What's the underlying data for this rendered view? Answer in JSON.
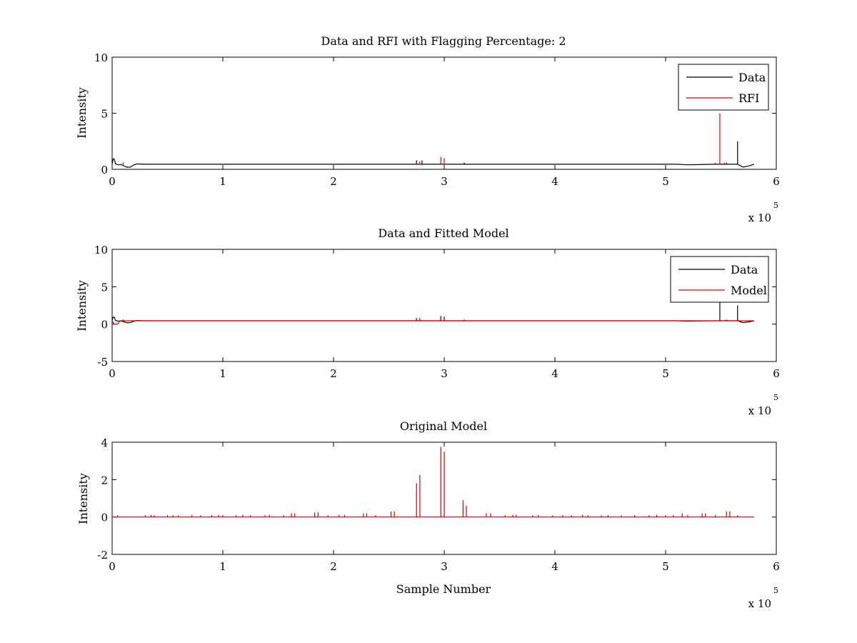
{
  "figure": {
    "background": "#ffffff",
    "colors": {
      "data": "#000000",
      "rfi": "#dd0000",
      "model": "#dd0000",
      "axes": "#000000"
    }
  },
  "chart_data": [
    {
      "type": "line",
      "title": "Data and RFI with Flagging Percentage: 2",
      "xlabel": "",
      "ylabel": "Intensity",
      "xlim": [
        0,
        6
      ],
      "ylim": [
        0,
        10
      ],
      "xticks": [
        "0",
        "1",
        "2",
        "3",
        "4",
        "5",
        "6"
      ],
      "yticks": [
        "0",
        "5",
        "10"
      ],
      "x_multiplier": {
        "prefix": "x 10",
        "exponent": "5"
      },
      "legend": {
        "position": "top-right",
        "entries": [
          {
            "name": "Data",
            "color": "#000000"
          },
          {
            "name": "RFI",
            "color": "#dd0000"
          }
        ]
      },
      "series": [
        {
          "name": "Data",
          "color": "#000000",
          "baseline": 0.45,
          "points": [
            [
              0,
              0.5
            ],
            [
              0.01,
              0.95
            ],
            [
              0.02,
              0.9
            ],
            [
              0.03,
              0.5
            ],
            [
              0.05,
              0.4
            ],
            [
              0.08,
              0.42
            ],
            [
              0.1,
              0.35
            ],
            [
              0.13,
              0.2
            ],
            [
              0.16,
              0.18
            ],
            [
              0.19,
              0.35
            ],
            [
              0.22,
              0.48
            ],
            [
              0.3,
              0.45
            ],
            [
              5.1,
              0.45
            ],
            [
              5.2,
              0.4
            ],
            [
              5.3,
              0.42
            ],
            [
              5.45,
              0.45
            ],
            [
              5.65,
              0.45
            ],
            [
              5.7,
              0.2
            ],
            [
              5.75,
              0.3
            ],
            [
              5.8,
              0.45
            ]
          ],
          "spikes": [
            [
              5.65,
              2.5
            ],
            [
              2.75,
              0.8
            ],
            [
              2.8,
              0.8
            ],
            [
              5.5,
              0.5
            ],
            [
              3.18,
              0.6
            ],
            [
              0.1,
              0.6
            ],
            [
              5.55,
              0.6
            ]
          ]
        },
        {
          "name": "RFI",
          "color": "#dd0000",
          "baseline": 0.45,
          "points": [],
          "spikes": [
            [
              5.49,
              5.0
            ],
            [
              2.97,
              1.1
            ],
            [
              3.0,
              1.0
            ],
            [
              1.4,
              0.5
            ],
            [
              2.75,
              0.7
            ],
            [
              2.78,
              0.7
            ],
            [
              3.2,
              0.5
            ],
            [
              5.45,
              0.6
            ],
            [
              5.53,
              0.6
            ],
            [
              5.6,
              0.5
            ]
          ]
        }
      ]
    },
    {
      "type": "line",
      "title": "Data and Fitted Model",
      "xlabel": "",
      "ylabel": "Intensity",
      "xlim": [
        0,
        6
      ],
      "ylim": [
        -5,
        10
      ],
      "xticks": [
        "0",
        "1",
        "2",
        "3",
        "4",
        "5",
        "6"
      ],
      "yticks": [
        "-5",
        "0",
        "5",
        "10"
      ],
      "x_multiplier": {
        "prefix": "x 10",
        "exponent": "5"
      },
      "legend": {
        "position": "top-right",
        "entries": [
          {
            "name": "Data",
            "color": "#000000"
          },
          {
            "name": "Model",
            "color": "#dd0000"
          }
        ]
      },
      "series": [
        {
          "name": "Data",
          "color": "#000000",
          "baseline": 0.45,
          "points": [
            [
              0,
              0.5
            ],
            [
              0.01,
              0.95
            ],
            [
              0.02,
              0.9
            ],
            [
              0.03,
              0.5
            ],
            [
              0.05,
              0.4
            ],
            [
              0.08,
              0.42
            ],
            [
              0.1,
              0.35
            ],
            [
              0.13,
              0.2
            ],
            [
              0.16,
              0.18
            ],
            [
              0.19,
              0.35
            ],
            [
              0.22,
              0.48
            ],
            [
              0.3,
              0.45
            ],
            [
              5.1,
              0.45
            ],
            [
              5.2,
              0.4
            ],
            [
              5.3,
              0.42
            ],
            [
              5.45,
              0.45
            ],
            [
              5.65,
              0.45
            ],
            [
              5.7,
              0.2
            ],
            [
              5.75,
              0.3
            ],
            [
              5.8,
              0.45
            ]
          ],
          "spikes": [
            [
              5.49,
              3.0
            ],
            [
              5.65,
              2.5
            ],
            [
              2.75,
              0.8
            ],
            [
              2.78,
              0.8
            ],
            [
              2.97,
              1.0
            ],
            [
              3.0,
              1.0
            ],
            [
              3.18,
              0.6
            ],
            [
              0.1,
              0.6
            ],
            [
              5.55,
              0.6
            ]
          ]
        },
        {
          "name": "Model",
          "color": "#dd0000",
          "baseline": 0.45,
          "points": [
            [
              0,
              0.45
            ],
            [
              0.02,
              0.0
            ],
            [
              0.05,
              0.0
            ],
            [
              0.07,
              0.45
            ],
            [
              5.8,
              0.45
            ]
          ],
          "spikes": [
            [
              2.75,
              0.8
            ],
            [
              2.78,
              0.8
            ],
            [
              2.97,
              1.1
            ],
            [
              3.0,
              1.0
            ],
            [
              3.18,
              0.6
            ],
            [
              0.1,
              0.6
            ]
          ]
        }
      ]
    },
    {
      "type": "line",
      "title": "Original Model",
      "xlabel": "Sample Number",
      "ylabel": "Intensity",
      "xlim": [
        0,
        6
      ],
      "ylim": [
        -2,
        4
      ],
      "xticks": [
        "0",
        "1",
        "2",
        "3",
        "4",
        "5",
        "6"
      ],
      "yticks": [
        "-2",
        "0",
        "2",
        "4"
      ],
      "x_multiplier": {
        "prefix": "x 10",
        "exponent": "5"
      },
      "legend": null,
      "series": [
        {
          "name": "",
          "color": "#dd0000",
          "baseline": 0,
          "points": [
            [
              0,
              0
            ],
            [
              5.8,
              0
            ]
          ],
          "spikes": [
            [
              0.05,
              0.1
            ],
            [
              0.3,
              0.1
            ],
            [
              0.35,
              0.12
            ],
            [
              0.38,
              0.1
            ],
            [
              0.5,
              0.1
            ],
            [
              0.55,
              0.1
            ],
            [
              0.6,
              0.1
            ],
            [
              0.72,
              0.12
            ],
            [
              0.8,
              0.1
            ],
            [
              0.9,
              0.1
            ],
            [
              0.96,
              0.12
            ],
            [
              1.0,
              0.1
            ],
            [
              1.12,
              0.1
            ],
            [
              1.18,
              0.12
            ],
            [
              1.25,
              0.1
            ],
            [
              1.38,
              0.1
            ],
            [
              1.42,
              0.12
            ],
            [
              1.55,
              0.1
            ],
            [
              1.62,
              0.2
            ],
            [
              1.65,
              0.2
            ],
            [
              1.83,
              0.25
            ],
            [
              1.86,
              0.25
            ],
            [
              1.95,
              0.1
            ],
            [
              2.05,
              0.12
            ],
            [
              2.1,
              0.12
            ],
            [
              2.27,
              0.2
            ],
            [
              2.3,
              0.2
            ],
            [
              2.38,
              0.1
            ],
            [
              2.52,
              0.3
            ],
            [
              2.55,
              0.3
            ],
            [
              2.75,
              1.8
            ],
            [
              2.78,
              2.25
            ],
            [
              2.97,
              3.75
            ],
            [
              3.0,
              3.5
            ],
            [
              3.17,
              0.9
            ],
            [
              3.2,
              0.6
            ],
            [
              3.38,
              0.2
            ],
            [
              3.42,
              0.2
            ],
            [
              3.55,
              0.1
            ],
            [
              3.62,
              0.12
            ],
            [
              3.65,
              0.12
            ],
            [
              3.8,
              0.1
            ],
            [
              3.85,
              0.12
            ],
            [
              3.98,
              0.1
            ],
            [
              4.07,
              0.1
            ],
            [
              4.15,
              0.1
            ],
            [
              4.25,
              0.12
            ],
            [
              4.3,
              0.1
            ],
            [
              4.42,
              0.1
            ],
            [
              4.48,
              0.1
            ],
            [
              4.6,
              0.1
            ],
            [
              4.72,
              0.1
            ],
            [
              4.85,
              0.1
            ],
            [
              4.92,
              0.12
            ],
            [
              5.0,
              0.1
            ],
            [
              5.07,
              0.1
            ],
            [
              5.15,
              0.2
            ],
            [
              5.2,
              0.12
            ],
            [
              5.33,
              0.2
            ],
            [
              5.36,
              0.2
            ],
            [
              5.45,
              0.12
            ],
            [
              5.55,
              0.3
            ],
            [
              5.58,
              0.3
            ],
            [
              5.65,
              0.1
            ]
          ]
        }
      ]
    }
  ]
}
